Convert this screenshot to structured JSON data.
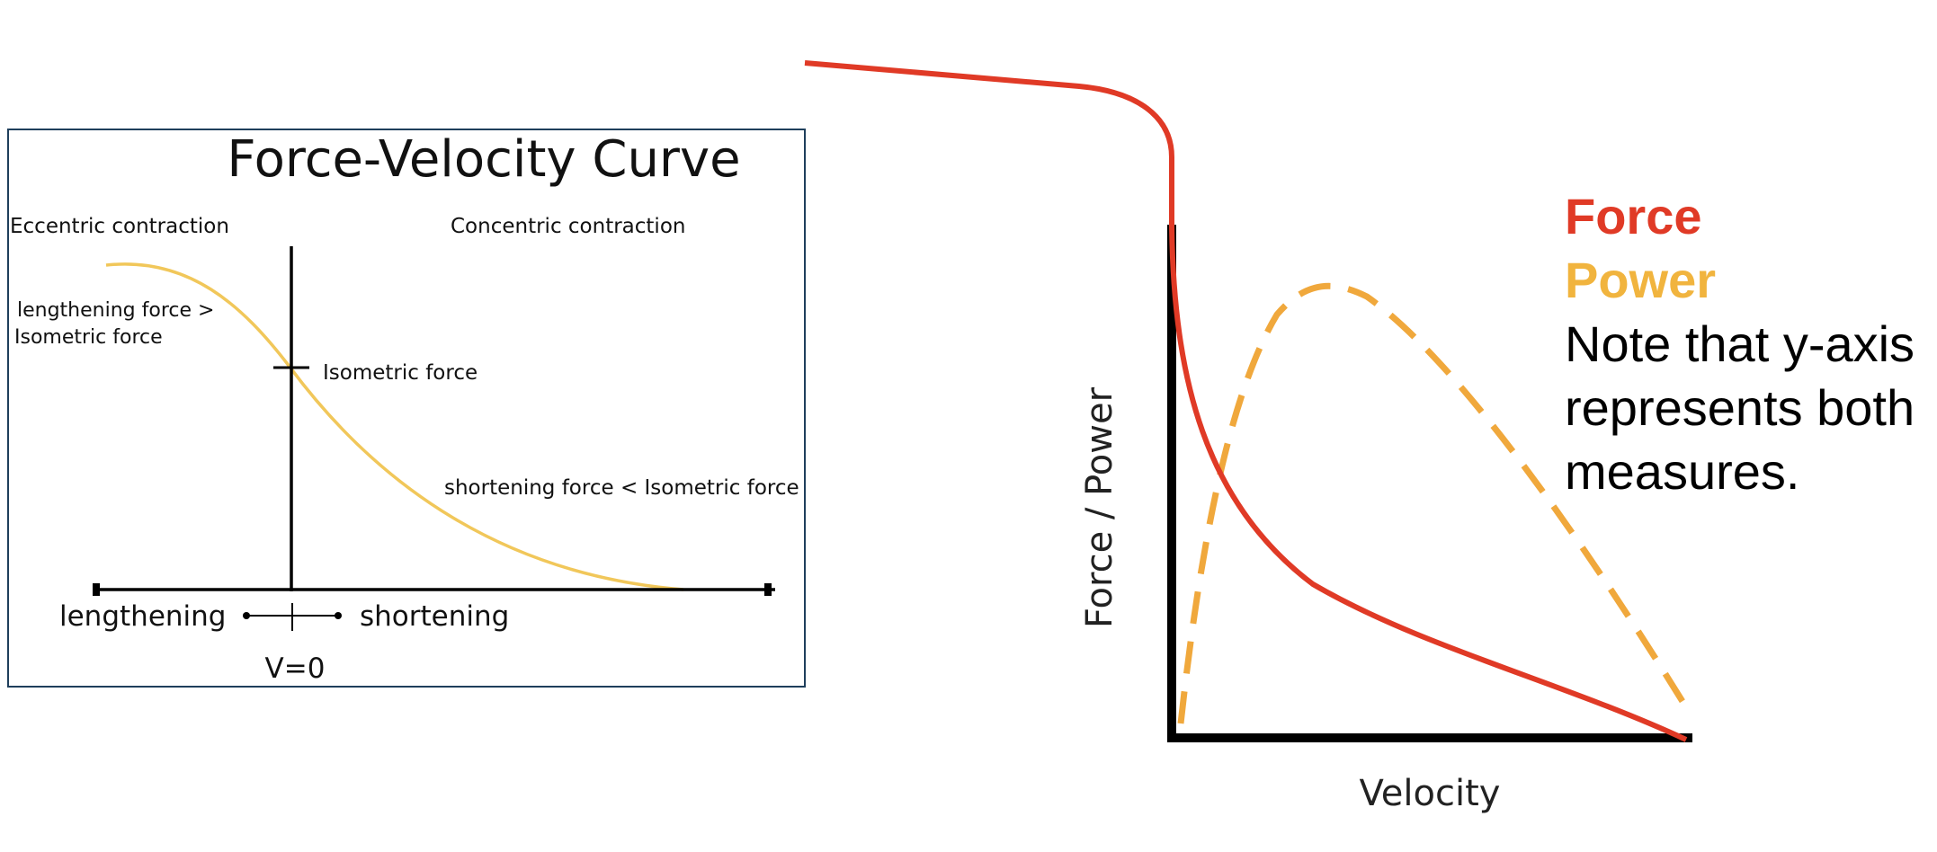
{
  "left_chart": {
    "title": "Force-Velocity Curve",
    "eccentric_label": "Eccentric contraction",
    "concentric_label": "Concentric contraction",
    "lengthening_force_line1": "lengthening force >",
    "lengthening_force_line2": "Isometric force",
    "isometric_force_label": "Isometric force",
    "shortening_force_label": "shortening force < Isometric force",
    "lengthening_label": "lengthening",
    "shortening_label": "shortening",
    "v0_label": "V=0",
    "curve_color": "#f1c75a",
    "frame_color": "#1f3f5c"
  },
  "right_chart": {
    "y_label": "Force / Power",
    "x_label": "Velocity",
    "force_color": "#e03a26",
    "power_color": "#f0a83c"
  },
  "legend": {
    "force": "Force",
    "power": "Power",
    "note_line1": "Note that y-axis",
    "note_line2": "represents both",
    "note_line3": "measures."
  }
}
